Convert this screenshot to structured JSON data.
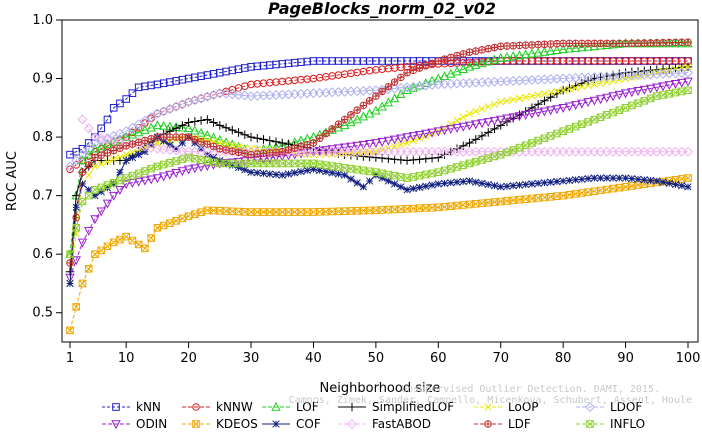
{
  "chart_data": {
    "type": "line",
    "title": "PageBlocks_norm_02_v02",
    "xlabel": "Neighborhood size",
    "ylabel": "ROC AUC",
    "xlim": [
      0,
      100
    ],
    "ylim": [
      0.45,
      1.0
    ],
    "x_ticks": [
      1,
      10,
      20,
      30,
      40,
      50,
      60,
      70,
      80,
      90,
      100
    ],
    "y_ticks": [
      0.5,
      0.6,
      0.7,
      0.8,
      0.9,
      1.0
    ],
    "grid": false,
    "legend_position": "bottom",
    "series": [
      {
        "name": "kNN",
        "color": "#1f1fd0",
        "marker": "square",
        "dash": "3,2",
        "points": [
          [
            1,
            0.77
          ],
          [
            3,
            0.78
          ],
          [
            5,
            0.8
          ],
          [
            7,
            0.83
          ],
          [
            8,
            0.85
          ],
          [
            10,
            0.865
          ],
          [
            12,
            0.885
          ],
          [
            15,
            0.89
          ],
          [
            20,
            0.9
          ],
          [
            25,
            0.91
          ],
          [
            30,
            0.92
          ],
          [
            40,
            0.93
          ],
          [
            50,
            0.93
          ],
          [
            60,
            0.93
          ],
          [
            70,
            0.93
          ],
          [
            80,
            0.93
          ],
          [
            90,
            0.93
          ],
          [
            100,
            0.93
          ]
        ]
      },
      {
        "name": "kNNW",
        "color": "#e01a1a",
        "marker": "circle",
        "dash": "4,2",
        "points": [
          [
            1,
            0.745
          ],
          [
            3,
            0.76
          ],
          [
            5,
            0.775
          ],
          [
            10,
            0.8
          ],
          [
            15,
            0.84
          ],
          [
            20,
            0.86
          ],
          [
            25,
            0.875
          ],
          [
            30,
            0.89
          ],
          [
            40,
            0.9
          ],
          [
            50,
            0.915
          ],
          [
            60,
            0.925
          ],
          [
            70,
            0.93
          ],
          [
            80,
            0.93
          ],
          [
            90,
            0.93
          ],
          [
            100,
            0.93
          ]
        ]
      },
      {
        "name": "LOF",
        "color": "#1fcf1f",
        "marker": "triangle-up",
        "dash": "4,2",
        "points": [
          [
            1,
            0.6
          ],
          [
            2,
            0.7
          ],
          [
            3,
            0.76
          ],
          [
            5,
            0.78
          ],
          [
            10,
            0.8
          ],
          [
            15,
            0.82
          ],
          [
            20,
            0.815
          ],
          [
            25,
            0.795
          ],
          [
            30,
            0.775
          ],
          [
            35,
            0.785
          ],
          [
            40,
            0.8
          ],
          [
            45,
            0.82
          ],
          [
            50,
            0.845
          ],
          [
            55,
            0.88
          ],
          [
            60,
            0.9
          ],
          [
            65,
            0.92
          ],
          [
            70,
            0.935
          ],
          [
            80,
            0.95
          ],
          [
            90,
            0.96
          ],
          [
            100,
            0.96
          ]
        ]
      },
      {
        "name": "SimplifiedLOF",
        "color": "#000000",
        "marker": "plus",
        "dash": "",
        "points": [
          [
            1,
            0.57
          ],
          [
            2,
            0.7
          ],
          [
            3,
            0.74
          ],
          [
            5,
            0.76
          ],
          [
            10,
            0.76
          ],
          [
            15,
            0.8
          ],
          [
            20,
            0.825
          ],
          [
            23,
            0.83
          ],
          [
            25,
            0.82
          ],
          [
            30,
            0.8
          ],
          [
            35,
            0.79
          ],
          [
            40,
            0.78
          ],
          [
            45,
            0.77
          ],
          [
            50,
            0.765
          ],
          [
            55,
            0.76
          ],
          [
            60,
            0.765
          ],
          [
            65,
            0.79
          ],
          [
            70,
            0.82
          ],
          [
            75,
            0.85
          ],
          [
            80,
            0.88
          ],
          [
            85,
            0.9
          ],
          [
            90,
            0.91
          ],
          [
            95,
            0.915
          ],
          [
            100,
            0.92
          ]
        ]
      },
      {
        "name": "LoOP",
        "color": "#e8e800",
        "marker": "x",
        "dash": "4,2",
        "points": [
          [
            1,
            0.55
          ],
          [
            3,
            0.72
          ],
          [
            5,
            0.75
          ],
          [
            10,
            0.77
          ],
          [
            15,
            0.79
          ],
          [
            20,
            0.8
          ],
          [
            25,
            0.79
          ],
          [
            30,
            0.78
          ],
          [
            40,
            0.77
          ],
          [
            50,
            0.775
          ],
          [
            55,
            0.79
          ],
          [
            60,
            0.81
          ],
          [
            65,
            0.84
          ],
          [
            70,
            0.86
          ],
          [
            75,
            0.87
          ],
          [
            80,
            0.88
          ],
          [
            90,
            0.9
          ],
          [
            100,
            0.92
          ]
        ]
      },
      {
        "name": "LDOF",
        "color": "#b0b0f0",
        "marker": "diamond",
        "dash": "4,2",
        "points": [
          [
            1,
            0.75
          ],
          [
            3,
            0.77
          ],
          [
            5,
            0.79
          ],
          [
            10,
            0.81
          ],
          [
            15,
            0.84
          ],
          [
            20,
            0.86
          ],
          [
            25,
            0.875
          ],
          [
            30,
            0.87
          ],
          [
            40,
            0.875
          ],
          [
            50,
            0.88
          ],
          [
            60,
            0.89
          ],
          [
            70,
            0.895
          ],
          [
            80,
            0.9
          ],
          [
            90,
            0.905
          ],
          [
            100,
            0.91
          ]
        ]
      },
      {
        "name": "ODIN",
        "color": "#9a1fd0",
        "marker": "triangle-down",
        "dash": "4,2",
        "points": [
          [
            1,
            0.56
          ],
          [
            3,
            0.62
          ],
          [
            5,
            0.66
          ],
          [
            8,
            0.7
          ],
          [
            10,
            0.72
          ],
          [
            15,
            0.73
          ],
          [
            20,
            0.745
          ],
          [
            25,
            0.755
          ],
          [
            30,
            0.76
          ],
          [
            40,
            0.775
          ],
          [
            50,
            0.79
          ],
          [
            60,
            0.81
          ],
          [
            70,
            0.83
          ],
          [
            80,
            0.85
          ],
          [
            90,
            0.875
          ],
          [
            100,
            0.895
          ]
        ]
      },
      {
        "name": "KDEOS",
        "color": "#f0a800",
        "marker": "square-x",
        "dash": "4,2",
        "points": [
          [
            1,
            0.47
          ],
          [
            3,
            0.55
          ],
          [
            5,
            0.6
          ],
          [
            8,
            0.62
          ],
          [
            10,
            0.63
          ],
          [
            13,
            0.61
          ],
          [
            15,
            0.645
          ],
          [
            20,
            0.665
          ],
          [
            23,
            0.675
          ],
          [
            30,
            0.672
          ],
          [
            40,
            0.672
          ],
          [
            50,
            0.675
          ],
          [
            60,
            0.68
          ],
          [
            70,
            0.69
          ],
          [
            80,
            0.7
          ],
          [
            90,
            0.715
          ],
          [
            100,
            0.73
          ]
        ]
      },
      {
        "name": "COF",
        "color": "#102080",
        "marker": "asterisk",
        "dash": "",
        "points": [
          [
            1,
            0.55
          ],
          [
            2,
            0.68
          ],
          [
            3,
            0.72
          ],
          [
            5,
            0.7
          ],
          [
            8,
            0.72
          ],
          [
            10,
            0.76
          ],
          [
            13,
            0.775
          ],
          [
            15,
            0.8
          ],
          [
            18,
            0.78
          ],
          [
            20,
            0.8
          ],
          [
            23,
            0.77
          ],
          [
            25,
            0.76
          ],
          [
            30,
            0.74
          ],
          [
            35,
            0.735
          ],
          [
            40,
            0.745
          ],
          [
            45,
            0.735
          ],
          [
            48,
            0.715
          ],
          [
            50,
            0.735
          ],
          [
            55,
            0.71
          ],
          [
            60,
            0.72
          ],
          [
            65,
            0.725
          ],
          [
            70,
            0.715
          ],
          [
            75,
            0.72
          ],
          [
            80,
            0.725
          ],
          [
            85,
            0.73
          ],
          [
            90,
            0.73
          ],
          [
            95,
            0.725
          ],
          [
            100,
            0.715
          ]
        ]
      },
      {
        "name": "FastABOD",
        "color": "#f0b0f0",
        "marker": "diamond",
        "dash": "4,2",
        "points": [
          [
            3,
            0.83
          ],
          [
            5,
            0.8
          ],
          [
            10,
            0.79
          ],
          [
            15,
            0.78
          ],
          [
            20,
            0.775
          ],
          [
            25,
            0.775
          ],
          [
            30,
            0.775
          ],
          [
            40,
            0.775
          ],
          [
            50,
            0.775
          ],
          [
            60,
            0.775
          ],
          [
            70,
            0.775
          ],
          [
            80,
            0.775
          ],
          [
            90,
            0.775
          ],
          [
            100,
            0.775
          ]
        ]
      },
      {
        "name": "LDF",
        "color": "#c03030",
        "marker": "circle-plus",
        "dash": "4,2",
        "points": [
          [
            1,
            0.585
          ],
          [
            3,
            0.74
          ],
          [
            5,
            0.765
          ],
          [
            10,
            0.785
          ],
          [
            15,
            0.8
          ],
          [
            20,
            0.8
          ],
          [
            25,
            0.78
          ],
          [
            30,
            0.77
          ],
          [
            35,
            0.775
          ],
          [
            40,
            0.79
          ],
          [
            45,
            0.83
          ],
          [
            50,
            0.87
          ],
          [
            55,
            0.91
          ],
          [
            60,
            0.93
          ],
          [
            65,
            0.945
          ],
          [
            70,
            0.955
          ],
          [
            80,
            0.96
          ],
          [
            90,
            0.96
          ],
          [
            100,
            0.962
          ]
        ]
      },
      {
        "name": "INFLO",
        "color": "#90d030",
        "marker": "hourglass",
        "dash": "4,2",
        "points": [
          [
            1,
            0.6
          ],
          [
            3,
            0.69
          ],
          [
            5,
            0.71
          ],
          [
            10,
            0.73
          ],
          [
            15,
            0.75
          ],
          [
            20,
            0.765
          ],
          [
            25,
            0.755
          ],
          [
            30,
            0.755
          ],
          [
            40,
            0.755
          ],
          [
            50,
            0.74
          ],
          [
            55,
            0.73
          ],
          [
            60,
            0.74
          ],
          [
            65,
            0.755
          ],
          [
            70,
            0.77
          ],
          [
            75,
            0.79
          ],
          [
            80,
            0.81
          ],
          [
            85,
            0.83
          ],
          [
            90,
            0.85
          ],
          [
            95,
            0.87
          ],
          [
            100,
            0.88
          ]
        ]
      }
    ],
    "legend_rows": [
      [
        "kNN",
        "kNNW",
        "LOF",
        "SimplifiedLOF",
        "LoOP",
        "LDOF"
      ],
      [
        "ODIN",
        "KDEOS",
        "COF",
        "FastABOD",
        "LDF",
        "INFLO"
      ]
    ],
    "watermark": [
      "Unsupervised Outlier Detection. DAMI, 2015.",
      "Campos, Zimek, Sander, Campello, Micenkova, Schubert, Assent, Houle"
    ]
  }
}
